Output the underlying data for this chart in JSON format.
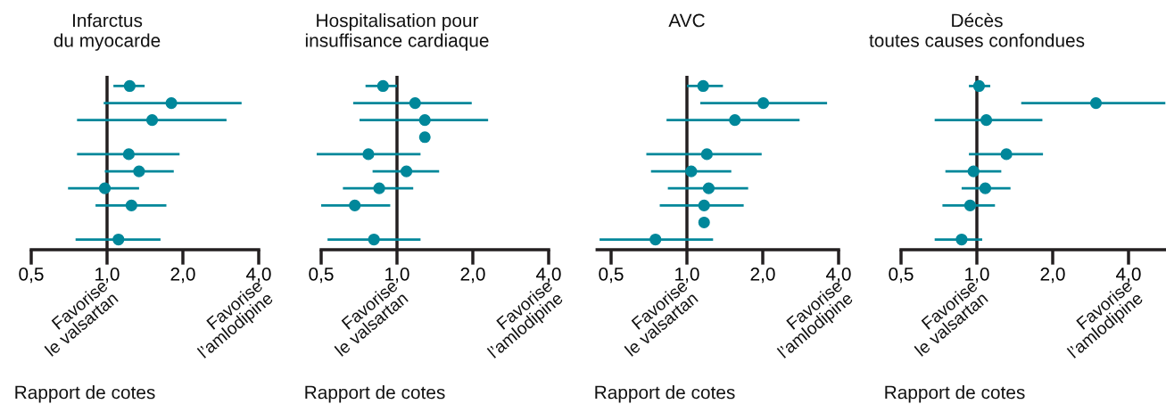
{
  "chart_data": [
    {
      "type": "scatter",
      "orientation": "horizontal",
      "title": "Infarctus\ndu myocarde",
      "xlabel": "Rapport de cotes",
      "annotations": [
        "Favorise\nle valsartan",
        "Favorise\nl’amlodipine"
      ],
      "log": "x",
      "marker": "circle",
      "tick_labels": "x",
      "color": "#00879a",
      "categories": [
        null,
        null,
        null,
        null,
        null,
        null,
        null,
        null,
        null,
        null
      ],
      "values": [
        1.23,
        1.8,
        1.51,
        null,
        1.22,
        1.34,
        0.98,
        1.25,
        null,
        1.11
      ],
      "errors": [
        [
          1.06,
          1.41
        ],
        [
          0.97,
          3.42
        ],
        [
          0.76,
          2.98
        ],
        null,
        [
          0.76,
          1.94
        ],
        [
          0.98,
          1.84
        ],
        [
          0.7,
          1.34
        ],
        [
          0.9,
          1.72
        ],
        null,
        [
          0.75,
          1.63
        ]
      ],
      "xlim": [
        0.5,
        4.0
      ],
      "xticks": [
        {
          "value": 0.5,
          "label": "0,5"
        },
        {
          "value": 1.0,
          "label": "1,0"
        },
        {
          "value": 2.0,
          "label": "2,0"
        },
        {
          "value": 4.0,
          "label": "4,0"
        }
      ],
      "ref_lines": [
        {
          "axis": "x",
          "value": 1.0,
          "color": "#231f20"
        }
      ]
    },
    {
      "type": "scatter",
      "orientation": "horizontal",
      "title": "Hospitalisation pour\ninsuffisance cardiaque",
      "xlabel": "Rapport de cotes",
      "annotations": [
        "Favorise\nle valsartan",
        "Favorise\nl’amlodipine"
      ],
      "log": "x",
      "marker": "circle",
      "tick_labels": "x",
      "color": "#00879a",
      "categories": [
        null,
        null,
        null,
        null,
        null,
        null,
        null,
        null,
        null,
        null
      ],
      "values": [
        0.88,
        1.18,
        1.29,
        1.29,
        0.77,
        1.09,
        0.85,
        0.68,
        null,
        0.81
      ],
      "errors": [
        [
          0.75,
          1.0
        ],
        [
          0.67,
          1.98
        ],
        [
          0.71,
          2.3
        ],
        null,
        [
          0.48,
          1.24
        ],
        [
          0.8,
          1.47
        ],
        [
          0.61,
          1.16
        ],
        [
          0.5,
          0.94
        ],
        null,
        [
          0.53,
          1.24
        ]
      ],
      "xlim": [
        0.5,
        4.0
      ],
      "xticks": [
        {
          "value": 0.5,
          "label": "0,5"
        },
        {
          "value": 1.0,
          "label": "1,0"
        },
        {
          "value": 2.0,
          "label": "2,0"
        },
        {
          "value": 4.0,
          "label": "4,0"
        }
      ],
      "ref_lines": [
        {
          "axis": "x",
          "value": 1.0,
          "color": "#231f20"
        }
      ]
    },
    {
      "type": "scatter",
      "orientation": "horizontal",
      "title": "AVC",
      "xlabel": "Rapport de cotes",
      "annotations": [
        "Favorise\nle valsartan",
        "Favorise\nl’amlodipine"
      ],
      "log": "x",
      "marker": "circle",
      "tick_labels": "x",
      "color": "#00879a",
      "categories": [
        null,
        null,
        null,
        null,
        null,
        null,
        null,
        null,
        null,
        null
      ],
      "values": [
        1.16,
        2.01,
        1.55,
        null,
        1.2,
        1.04,
        1.22,
        1.17,
        1.17,
        0.75
      ],
      "errors": [
        [
          1.0,
          1.39
        ],
        [
          1.13,
          3.6
        ],
        [
          0.83,
          2.8
        ],
        null,
        [
          0.69,
          1.98
        ],
        [
          0.72,
          1.5
        ],
        [
          0.84,
          1.75
        ],
        [
          0.78,
          1.68
        ],
        null,
        [
          0.45,
          1.27
        ]
      ],
      "xlim": [
        0.44,
        4.0
      ],
      "xticks": [
        {
          "value": 0.5,
          "label": "0,5"
        },
        {
          "value": 1.0,
          "label": "1,0"
        },
        {
          "value": 2.0,
          "label": "2,0"
        },
        {
          "value": 4.0,
          "label": "4,0"
        }
      ],
      "ref_lines": [
        {
          "axis": "x",
          "value": 1.0,
          "color": "#231f20"
        }
      ]
    },
    {
      "type": "scatter",
      "orientation": "horizontal",
      "title": "Décès\ntoutes causes confondues",
      "xlabel": "Rapport de cotes",
      "annotations": [
        "Favorise\nle valsartan",
        "Favorise\nl’amlodipine"
      ],
      "log": "x",
      "marker": "circle",
      "tick_labels": "x",
      "color": "#00879a",
      "categories": [
        null,
        null,
        null,
        null,
        null,
        null,
        null,
        null,
        null,
        null
      ],
      "values": [
        1.02,
        2.97,
        1.09,
        null,
        1.31,
        0.97,
        1.08,
        0.94,
        null,
        0.87
      ],
      "errors": [
        [
          0.93,
          1.13
        ],
        [
          1.5,
          5.6
        ],
        [
          0.68,
          1.82
        ],
        null,
        [
          0.93,
          1.83
        ],
        [
          0.75,
          1.25
        ],
        [
          0.87,
          1.36
        ],
        [
          0.73,
          1.18
        ],
        null,
        [
          0.68,
          1.05
        ]
      ],
      "xlim": [
        0.5,
        5.6
      ],
      "xticks": [
        {
          "value": 0.5,
          "label": "0,5"
        },
        {
          "value": 1.0,
          "label": "1,0"
        },
        {
          "value": 2.0,
          "label": "2,0"
        },
        {
          "value": 4.0,
          "label": "4,0"
        }
      ],
      "ref_lines": [
        {
          "axis": "x",
          "value": 1.0,
          "color": "#231f20"
        }
      ]
    }
  ]
}
